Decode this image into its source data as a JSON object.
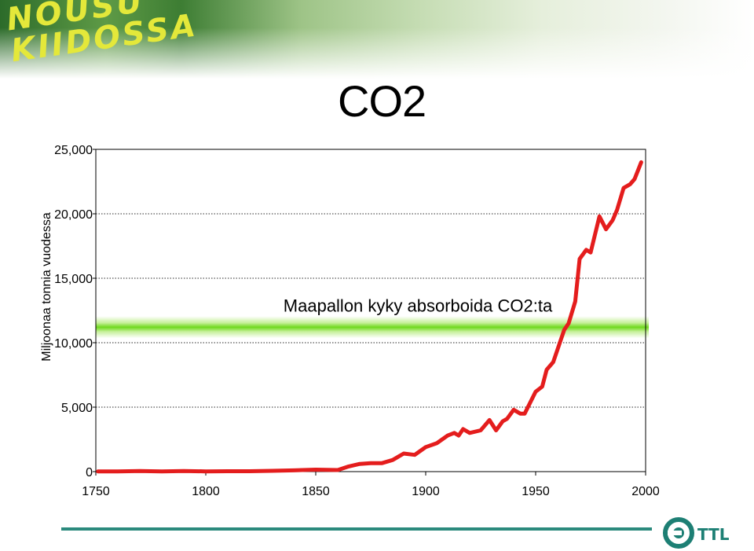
{
  "header": {
    "logo_lines": [
      "NOUSU",
      "KIIDOSSA"
    ]
  },
  "slide": {
    "title": "CO2"
  },
  "brand": {
    "name": "TTL"
  },
  "colors": {
    "line": "#e41d1d",
    "band": "#7edc2a",
    "rule": "#2b8a7d",
    "brand": "#1d7f74"
  },
  "chart_data": {
    "type": "line",
    "title": "",
    "xlabel": "",
    "ylabel": "Miljoonaa tonnia vuodessa",
    "xlim": [
      1750,
      2000
    ],
    "ylim": [
      0,
      25000
    ],
    "x_ticks": [
      1750,
      1800,
      1850,
      1900,
      1950,
      2000
    ],
    "x_tick_labels": [
      "1750",
      "1800",
      "1850",
      "1900",
      "1950",
      "2000"
    ],
    "y_ticks": [
      0,
      5000,
      10000,
      15000,
      20000,
      25000
    ],
    "y_tick_labels": [
      "0",
      "5,000",
      "10,000",
      "15,000",
      "20,000",
      "25,000"
    ],
    "grid": "horizontal dotted",
    "band": {
      "value": 11200,
      "label": "Maapallon kyky absorboida CO2:ta"
    },
    "series": [
      {
        "name": "",
        "points": [
          [
            1751,
            10
          ],
          [
            1760,
            20
          ],
          [
            1770,
            50
          ],
          [
            1780,
            10
          ],
          [
            1790,
            50
          ],
          [
            1800,
            20
          ],
          [
            1810,
            30
          ],
          [
            1820,
            30
          ],
          [
            1830,
            60
          ],
          [
            1840,
            100
          ],
          [
            1850,
            150
          ],
          [
            1860,
            120
          ],
          [
            1865,
            400
          ],
          [
            1870,
            600
          ],
          [
            1875,
            650
          ],
          [
            1880,
            650
          ],
          [
            1885,
            900
          ],
          [
            1890,
            1400
          ],
          [
            1895,
            1300
          ],
          [
            1900,
            1900
          ],
          [
            1905,
            2200
          ],
          [
            1910,
            2800
          ],
          [
            1913,
            3000
          ],
          [
            1915,
            2800
          ],
          [
            1917,
            3300
          ],
          [
            1920,
            3000
          ],
          [
            1925,
            3200
          ],
          [
            1929,
            4000
          ],
          [
            1932,
            3200
          ],
          [
            1935,
            3900
          ],
          [
            1937,
            4100
          ],
          [
            1940,
            4800
          ],
          [
            1943,
            4500
          ],
          [
            1945,
            4500
          ],
          [
            1950,
            6200
          ],
          [
            1953,
            6600
          ],
          [
            1955,
            7900
          ],
          [
            1958,
            8500
          ],
          [
            1960,
            9500
          ],
          [
            1963,
            11000
          ],
          [
            1965,
            11500
          ],
          [
            1968,
            13200
          ],
          [
            1970,
            16500
          ],
          [
            1973,
            17200
          ],
          [
            1975,
            17000
          ],
          [
            1979,
            19800
          ],
          [
            1982,
            18800
          ],
          [
            1985,
            19500
          ],
          [
            1987,
            20300
          ],
          [
            1990,
            22000
          ],
          [
            1993,
            22300
          ],
          [
            1995,
            22700
          ],
          [
            1998,
            24000
          ]
        ]
      }
    ]
  }
}
